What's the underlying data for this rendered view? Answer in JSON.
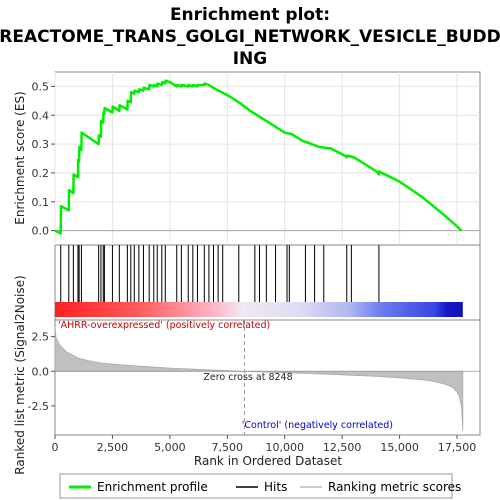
{
  "title_line1": "Enrichment plot:",
  "title_line2": "REACTOME_TRANS_GOLGI_NETWORK_VESICLE_BUDD",
  "title_line3": "ING",
  "chart_data": {
    "type": "line",
    "es_ylabel": "Enrichment score (ES)",
    "metric_ylabel": "Ranked list metric (Signal2Noise)",
    "xlabel": "Rank in Ordered Dataset",
    "xlim": [
      0,
      18500
    ],
    "es_ylim": [
      -0.05,
      0.55
    ],
    "metric_ylim": [
      -4.6,
      3.7
    ],
    "x_ticks": [
      0,
      2500,
      5000,
      7500,
      10000,
      12500,
      15000,
      17500
    ],
    "x_tick_labels": [
      "0",
      "2,500",
      "5,000",
      "7,500",
      "10,000",
      "12,500",
      "15,000",
      "17,500"
    ],
    "es_ticks": [
      0.0,
      0.1,
      0.2,
      0.3,
      0.4,
      0.5
    ],
    "es_tick_labels": [
      "0.0",
      "0.1",
      "0.2",
      "0.3",
      "0.4",
      "0.5"
    ],
    "metric_ticks": [
      2.5,
      0.0,
      -2.5
    ],
    "metric_tick_labels": [
      "2.5",
      "0.0",
      "-2.5"
    ],
    "enrichment_profile": {
      "name": "Enrichment profile",
      "color": "#00ee00",
      "x": [
        0,
        250,
        260,
        600,
        610,
        800,
        810,
        1000,
        1010,
        1050,
        1060,
        1150,
        1160,
        1900,
        1910,
        2000,
        2010,
        2100,
        2110,
        2150,
        2160,
        2500,
        2510,
        2800,
        2810,
        3150,
        3160,
        3300,
        3310,
        3450,
        3460,
        3650,
        3660,
        3850,
        3860,
        4100,
        4110,
        4300,
        4310,
        4450,
        4460,
        4650,
        4660,
        4800,
        4810,
        5000,
        5300,
        5310,
        5500,
        5510,
        5800,
        5810,
        6000,
        6010,
        6200,
        6210,
        6500,
        6510,
        6700,
        7000,
        7500,
        8000,
        8500,
        9000,
        9500,
        10000,
        10300,
        10800,
        11000,
        11500,
        12000,
        12500,
        12700,
        12710,
        13000,
        13500,
        14000,
        14100,
        14110,
        15000,
        16000,
        17000,
        17700
      ],
      "y": [
        0.0,
        -0.01,
        0.085,
        0.07,
        0.14,
        0.13,
        0.195,
        0.185,
        0.245,
        0.24,
        0.29,
        0.28,
        0.34,
        0.3,
        0.33,
        0.325,
        0.38,
        0.375,
        0.41,
        0.405,
        0.425,
        0.41,
        0.43,
        0.415,
        0.435,
        0.42,
        0.45,
        0.445,
        0.48,
        0.475,
        0.485,
        0.48,
        0.49,
        0.485,
        0.495,
        0.49,
        0.505,
        0.5,
        0.505,
        0.5,
        0.51,
        0.505,
        0.515,
        0.51,
        0.52,
        0.515,
        0.5,
        0.505,
        0.5,
        0.505,
        0.5,
        0.505,
        0.5,
        0.505,
        0.5,
        0.505,
        0.505,
        0.51,
        0.505,
        0.49,
        0.47,
        0.445,
        0.415,
        0.39,
        0.365,
        0.34,
        0.335,
        0.31,
        0.305,
        0.29,
        0.285,
        0.265,
        0.255,
        0.26,
        0.255,
        0.23,
        0.205,
        0.195,
        0.205,
        0.17,
        0.115,
        0.05,
        0.0
      ]
    },
    "hits": {
      "name": "Hits",
      "x": [
        250,
        600,
        800,
        1000,
        1050,
        1150,
        1900,
        2000,
        2100,
        2150,
        2500,
        2800,
        3150,
        3300,
        3450,
        3650,
        3850,
        4100,
        4300,
        4450,
        4650,
        4800,
        5300,
        5500,
        5800,
        6000,
        6200,
        6500,
        6700,
        6900,
        7100,
        7300,
        8000,
        8700,
        8900,
        9200,
        9600,
        10100,
        10200,
        10900,
        11300,
        11700,
        12700,
        12900,
        14100
      ]
    },
    "ranking_metric": {
      "name": "Ranking metric scores",
      "x": [
        0,
        50,
        200,
        500,
        1000,
        1500,
        2000,
        3000,
        4000,
        5000,
        6000,
        7000,
        8000,
        8248,
        9000,
        10000,
        11000,
        12000,
        13000,
        14000,
        15000,
        16000,
        16500,
        17000,
        17300,
        17500,
        17600,
        17700,
        17750
      ],
      "y": [
        3.2,
        2.4,
        1.9,
        1.4,
        0.95,
        0.75,
        0.6,
        0.45,
        0.33,
        0.23,
        0.15,
        0.08,
        0.02,
        0.0,
        -0.05,
        -0.1,
        -0.16,
        -0.22,
        -0.29,
        -0.37,
        -0.47,
        -0.62,
        -0.74,
        -0.95,
        -1.15,
        -1.5,
        -1.8,
        -2.6,
        -4.3
      ]
    },
    "zero_cross_label": "Zero cross at 8248",
    "zero_cross_rank": 8248,
    "positive_label": "'AHRR-overexpressed' (positively correlated)",
    "negative_label": "'Control' (negatively correlated)",
    "legend": [
      {
        "name": "Enrichment profile",
        "color": "#00ee00"
      },
      {
        "name": "Hits",
        "color": "#000000"
      },
      {
        "name": "Ranking metric scores",
        "color": "#bbbbbb"
      }
    ],
    "legend_position": "bottom"
  }
}
